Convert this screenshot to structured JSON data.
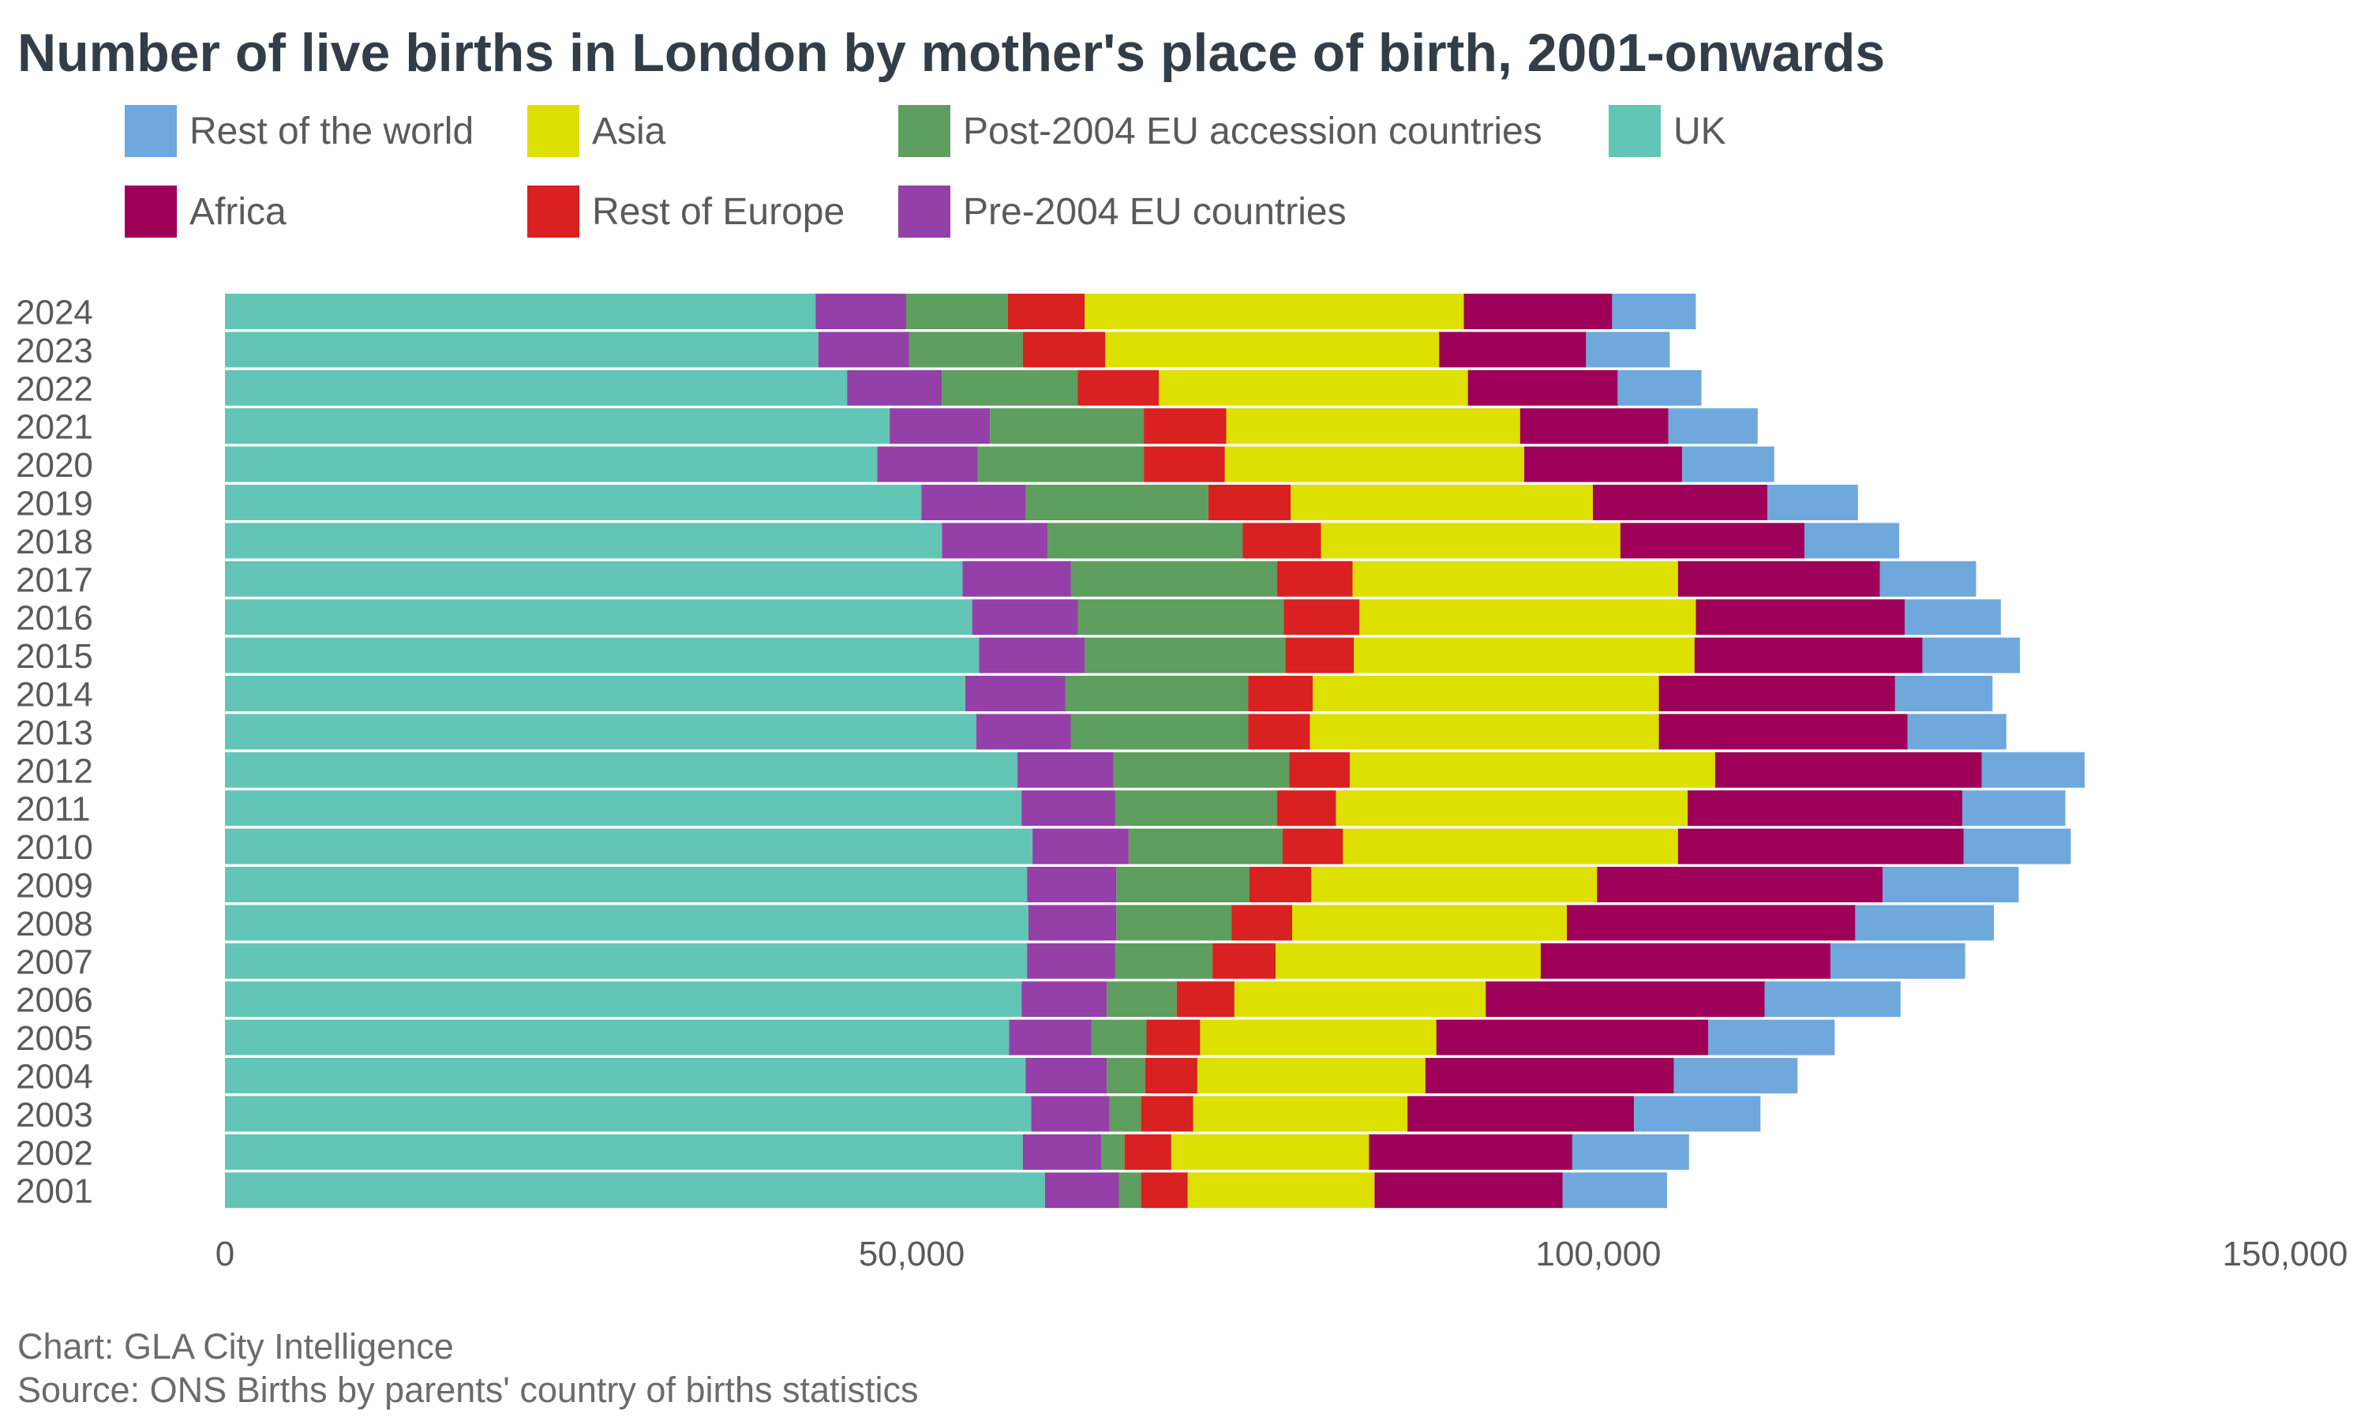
{
  "title": "Number of live births in London by mother's place of birth, 2001-onwards",
  "footer": {
    "credit": "Chart: GLA City Intelligence",
    "source": "Source: ONS Births by parents' country of births statistics"
  },
  "legend": [
    {
      "name": "Rest of the world",
      "color": "#6fa8dc"
    },
    {
      "name": "Asia",
      "color": "#dde000"
    },
    {
      "name": "Post-2004 EU accession countries",
      "color": "#5e9e5e"
    },
    {
      "name": "UK",
      "color": "#63c5b5"
    },
    {
      "name": "Africa",
      "color": "#9e0059"
    },
    {
      "name": "Rest of Europe",
      "color": "#d92121"
    },
    {
      "name": "Pre-2004 EU countries",
      "color": "#9440a8"
    }
  ],
  "chart_data": {
    "type": "bar",
    "orientation": "horizontal",
    "stacked": true,
    "title": "Number of live births in London by mother's place of birth, 2001-onwards",
    "xlabel": "",
    "ylabel": "",
    "xlim": [
      0,
      150000
    ],
    "xticks": [
      0,
      50000,
      100000,
      150000
    ],
    "xtick_labels": [
      "0",
      "50,000",
      "100,000",
      "150,000"
    ],
    "categories": [
      "2024",
      "2023",
      "2022",
      "2021",
      "2020",
      "2019",
      "2018",
      "2017",
      "2016",
      "2015",
      "2014",
      "2013",
      "2012",
      "2011",
      "2010",
      "2009",
      "2008",
      "2007",
      "2006",
      "2005",
      "2004",
      "2003",
      "2002",
      "2001"
    ],
    "series": [
      {
        "name": "UK",
        "color": "#63c5b5",
        "values": [
          43000,
          43200,
          45300,
          48400,
          47500,
          50700,
          52200,
          53700,
          54400,
          54900,
          53900,
          54700,
          57700,
          58000,
          58800,
          58400,
          58500,
          58400,
          58000,
          57100,
          58300,
          58700,
          58100,
          59700
        ]
      },
      {
        "name": "Pre-2004 EU countries",
        "color": "#9440a8",
        "values": [
          6600,
          6600,
          6900,
          7300,
          7300,
          7600,
          7700,
          7900,
          7700,
          7700,
          7300,
          6900,
          7000,
          6800,
          7000,
          6500,
          6400,
          6400,
          6200,
          6000,
          5900,
          5700,
          5700,
          5400
        ]
      },
      {
        "name": "Post-2004 EU accession countries",
        "color": "#5e9e5e",
        "values": [
          7400,
          8300,
          9900,
          11200,
          12100,
          13300,
          14200,
          15000,
          15000,
          14600,
          13300,
          12900,
          12800,
          11800,
          11200,
          9700,
          8400,
          7100,
          5100,
          4000,
          2800,
          2300,
          1700,
          1600
        ]
      },
      {
        "name": "Rest of Europe",
        "color": "#d92121",
        "values": [
          5600,
          6000,
          5900,
          6000,
          5900,
          6000,
          5700,
          5500,
          5500,
          5000,
          4700,
          4500,
          4400,
          4300,
          4400,
          4500,
          4400,
          4600,
          4200,
          3900,
          3800,
          3800,
          3400,
          3400
        ]
      },
      {
        "name": "Asia",
        "color": "#dde000",
        "values": [
          27600,
          24300,
          22500,
          21400,
          21800,
          22000,
          21800,
          23700,
          24500,
          24800,
          25200,
          25400,
          26600,
          25600,
          24400,
          20800,
          20000,
          19300,
          18300,
          17200,
          16600,
          15600,
          14400,
          13600
        ]
      },
      {
        "name": "Africa",
        "color": "#9e0059",
        "values": [
          10800,
          10700,
          10900,
          10800,
          11500,
          12700,
          13400,
          14700,
          15200,
          16600,
          17200,
          18100,
          19400,
          20000,
          20800,
          20800,
          21000,
          21100,
          20300,
          19800,
          18100,
          16500,
          14800,
          13700
        ]
      },
      {
        "name": "Rest of the world",
        "color": "#6fa8dc",
        "values": [
          6100,
          6100,
          6100,
          6500,
          6700,
          6600,
          6900,
          7000,
          7000,
          7100,
          7100,
          7200,
          7500,
          7500,
          7800,
          9900,
          10100,
          9800,
          9900,
          9200,
          9000,
          9200,
          8500,
          7600
        ]
      }
    ]
  }
}
